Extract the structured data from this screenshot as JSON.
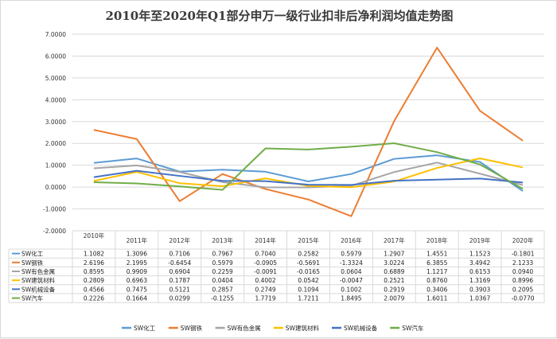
{
  "chart_data": {
    "type": "line",
    "title": "2010年至2020年Q1部分申万一级行业扣非后净利润均值走势图",
    "xlabel": "",
    "ylabel": "",
    "ylim": [
      -2,
      7
    ],
    "yticks": [
      "-2.0000",
      "-1.0000",
      "0.0000",
      "1.0000",
      "2.0000",
      "3.0000",
      "4.0000",
      "5.0000",
      "6.0000",
      "7.0000"
    ],
    "ytick_values": [
      -2,
      -1,
      0,
      1,
      2,
      3,
      4,
      5,
      6,
      7
    ],
    "categories": [
      "2010年",
      "2011年",
      "2012年",
      "2013年",
      "2014年",
      "2015年",
      "2016年",
      "2017年",
      "2018年",
      "2019年",
      "2020年"
    ],
    "grid": true,
    "legend": "bottom",
    "series": [
      {
        "name": "SW化工",
        "color": "#5b9bd5",
        "values": [
          1.1082,
          1.3096,
          0.7106,
          0.7967,
          0.704,
          0.2582,
          0.5979,
          1.2907,
          1.4551,
          1.1523,
          -0.1801
        ],
        "labels": [
          "1.1082",
          "1.3096",
          "0.7106",
          "0.7967",
          "0.7040",
          "0.2582",
          "0.5979",
          "1.2907",
          "1.4551",
          "1.1523",
          "-0.1801"
        ]
      },
      {
        "name": "SW钢铁",
        "color": "#ed7d31",
        "values": [
          2.6196,
          2.1995,
          -0.6454,
          0.5979,
          -0.0905,
          -0.5691,
          -1.3324,
          3.0224,
          6.3855,
          3.4942,
          2.1233
        ],
        "labels": [
          "2.6196",
          "2.1995",
          "-0.6454",
          "0.5979",
          "-0.0905",
          "-0.5691",
          "-1.3324",
          "3.0224",
          "6.3855",
          "3.4942",
          "2.1233"
        ]
      },
      {
        "name": "SW有色金属",
        "color": "#a5a5a5",
        "values": [
          0.8595,
          0.9909,
          0.6904,
          0.2259,
          -0.0091,
          -0.0165,
          0.0604,
          0.6889,
          1.1217,
          0.6153,
          0.094
        ],
        "labels": [
          "0.8595",
          "0.9909",
          "0.6904",
          "0.2259",
          "-0.0091",
          "-0.0165",
          "0.0604",
          "0.6889",
          "1.1217",
          "0.6153",
          "0.0940"
        ]
      },
      {
        "name": "SW建筑材料",
        "color": "#ffc000",
        "values": [
          0.2809,
          0.6963,
          0.1787,
          0.0404,
          0.4002,
          0.0542,
          -0.0047,
          0.2521,
          0.876,
          1.3169,
          0.8996
        ],
        "labels": [
          "0.2809",
          "0.6963",
          "0.1787",
          "0.0404",
          "0.4002",
          "0.0542",
          "-0.0047",
          "0.2521",
          "0.8760",
          "1.3169",
          "0.8996"
        ]
      },
      {
        "name": "SW机械设备",
        "color": "#4472c4",
        "values": [
          0.4566,
          0.7475,
          0.5121,
          0.2857,
          0.2749,
          0.1094,
          0.1002,
          0.2919,
          0.3406,
          0.3903,
          0.2095
        ],
        "labels": [
          "0.4566",
          "0.7475",
          "0.5121",
          "0.2857",
          "0.2749",
          "0.1094",
          "0.1002",
          "0.2919",
          "0.3406",
          "0.3903",
          "0.2095"
        ]
      },
      {
        "name": "SW汽车",
        "color": "#70ad47",
        "values": [
          0.2226,
          0.1664,
          0.0299,
          -0.1255,
          1.7719,
          1.7211,
          1.8495,
          2.0079,
          1.6011,
          1.0367,
          -0.077
        ],
        "labels": [
          "0.2226",
          "0.1664",
          "0.0299",
          "-0.1255",
          "1.7719",
          "1.7211",
          "1.8495",
          "2.0079",
          "1.6011",
          "1.0367",
          "-0.0770"
        ]
      }
    ]
  }
}
